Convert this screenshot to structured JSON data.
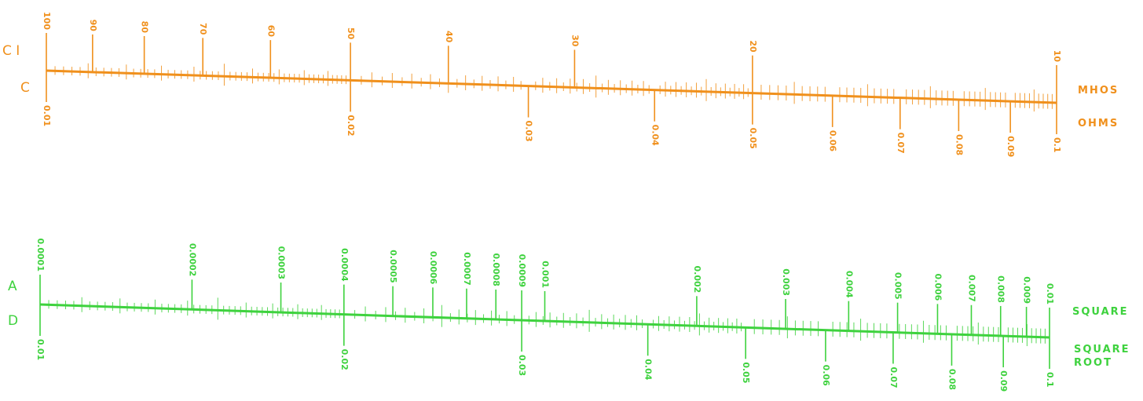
{
  "top_scale": {
    "color": "#f0901c",
    "left_labels": [
      "C I",
      "C"
    ],
    "right_labels": [
      "MHOS",
      "OHMS"
    ],
    "upper_ticks": [
      "100",
      "90",
      "80",
      "70",
      "60",
      "50",
      "40",
      "30",
      "20",
      "10"
    ],
    "upper_values": [
      100,
      90,
      80,
      70,
      60,
      50,
      40,
      30,
      20,
      10
    ],
    "lower_ticks": [
      "0.01",
      "0.02",
      "0.03",
      "0.04",
      "0.05",
      "0.06",
      "0.07",
      "0.08",
      "0.09",
      "0.1"
    ],
    "lower_values": [
      0.01,
      0.02,
      0.03,
      0.04,
      0.05,
      0.06,
      0.07,
      0.08,
      0.09,
      0.1
    ]
  },
  "bottom_scale": {
    "color": "#3ed23e",
    "left_labels": [
      "A",
      "D"
    ],
    "right_labels": [
      "SQUARE",
      "SQUARE",
      "ROOT"
    ],
    "upper_ticks": [
      "0.0001",
      "0.0002",
      "0.0003",
      "0.0004",
      "0.0005",
      "0.0006",
      "0.0007",
      "0.0008",
      "0.0009",
      "0.001",
      "0.002",
      "0.003",
      "0.004",
      "0.005",
      "0.006",
      "0.007",
      "0.008",
      "0.009",
      "0.01"
    ],
    "upper_values": [
      0.0001,
      0.0002,
      0.0003,
      0.0004,
      0.0005,
      0.0006,
      0.0007,
      0.0008,
      0.0009,
      0.001,
      0.002,
      0.003,
      0.004,
      0.005,
      0.006,
      0.007,
      0.008,
      0.009,
      0.01
    ],
    "lower_ticks": [
      "0.01",
      "0.02",
      "0.03",
      "0.04",
      "0.05",
      "0.06",
      "0.07",
      "0.08",
      "0.09",
      "0.1"
    ],
    "lower_values": [
      0.01,
      0.02,
      0.03,
      0.04,
      0.05,
      0.06,
      0.07,
      0.08,
      0.09,
      0.1
    ]
  }
}
